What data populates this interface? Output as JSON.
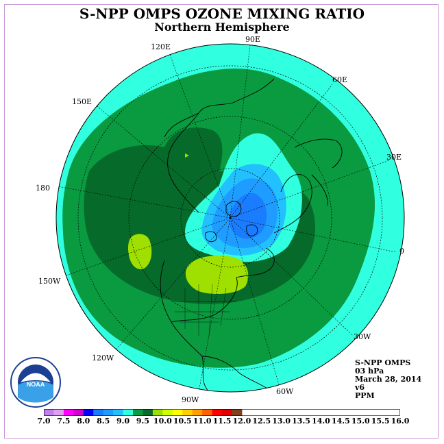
{
  "header": {
    "title": "S-NPP OMPS OZONE MIXING RATIO",
    "subtitle": "Northern Hemisphere"
  },
  "longitudes": [
    {
      "name": "lon-label-90e",
      "text": "90E"
    },
    {
      "name": "lon-label-60e",
      "text": "60E"
    },
    {
      "name": "lon-label-30e",
      "text": "30E"
    },
    {
      "name": "lon-label-0",
      "text": "0"
    },
    {
      "name": "lon-label-30w",
      "text": "30W"
    },
    {
      "name": "lon-label-60w",
      "text": "60W"
    },
    {
      "name": "lon-label-90w",
      "text": "90W"
    },
    {
      "name": "lon-label-120w",
      "text": "120W"
    },
    {
      "name": "lon-label-150w",
      "text": "150W"
    },
    {
      "name": "lon-label-180",
      "text": "180"
    },
    {
      "name": "lon-label-150e",
      "text": "150E"
    },
    {
      "name": "lon-label-120e",
      "text": "120E"
    }
  ],
  "info": {
    "instrument": "S-NPP OMPS",
    "level": "03 hPa",
    "date": "March 28, 2014",
    "version": "v6",
    "units": "PPM"
  },
  "logo": {
    "text": "NOAA"
  },
  "legend": {
    "ticks": [
      "7.0",
      "7.5",
      "8.0",
      "8.5",
      "9.0",
      "9.5",
      "10.0",
      "10.5",
      "11.0",
      "11.5",
      "12.0",
      "12.5",
      "13.0",
      "13.5",
      "14.0",
      "14.5",
      "15.0",
      "15.5",
      "16.0"
    ],
    "colors": [
      "#c080f0",
      "#e0a0f0",
      "#ff00ff",
      "#d000d0",
      "#0000ff",
      "#1a7cff",
      "#1e9cff",
      "#22c0ff",
      "#30ffe0",
      "#0a9a40",
      "#066a2a",
      "#a0e000",
      "#d0ff00",
      "#ffff00",
      "#ffd000",
      "#ffa000",
      "#ff6000",
      "#ff0000",
      "#e00000",
      "#804020"
    ]
  },
  "palette": {
    "land_border": "#000000",
    "ocean_bg": "#30ffe0"
  }
}
